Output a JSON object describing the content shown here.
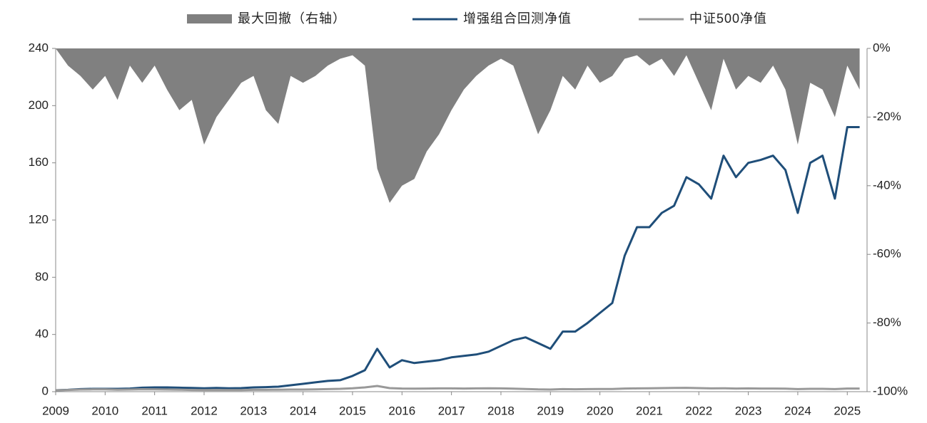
{
  "chart_data": {
    "type": "line",
    "x": [
      2009,
      2009.25,
      2009.5,
      2009.75,
      2010,
      2010.25,
      2010.5,
      2010.75,
      2011,
      2011.25,
      2011.5,
      2011.75,
      2012,
      2012.25,
      2012.5,
      2012.75,
      2013,
      2013.25,
      2013.5,
      2013.75,
      2014,
      2014.25,
      2014.5,
      2014.75,
      2015,
      2015.25,
      2015.5,
      2015.75,
      2016,
      2016.25,
      2016.5,
      2016.75,
      2017,
      2017.25,
      2017.5,
      2017.75,
      2018,
      2018.25,
      2018.5,
      2018.75,
      2019,
      2019.25,
      2019.5,
      2019.75,
      2020,
      2020.25,
      2020.5,
      2020.75,
      2021,
      2021.25,
      2021.5,
      2021.75,
      2022,
      2022.25,
      2022.5,
      2022.75,
      2023,
      2023.25,
      2023.5,
      2023.75,
      2024,
      2024.25,
      2024.5,
      2024.75,
      2025,
      2025.25
    ],
    "series": [
      {
        "name": "最大回撤（右轴）",
        "color": "#808080",
        "axis": "y2",
        "style": "area",
        "values": [
          0,
          -5,
          -8,
          -12,
          -8,
          -15,
          -5,
          -10,
          -5,
          -12,
          -18,
          -15,
          -28,
          -20,
          -15,
          -10,
          -8,
          -18,
          -22,
          -8,
          -10,
          -8,
          -5,
          -3,
          -2,
          -5,
          -35,
          -45,
          -40,
          -38,
          -30,
          -25,
          -18,
          -12,
          -8,
          -5,
          -3,
          -5,
          -15,
          -25,
          -18,
          -8,
          -12,
          -5,
          -10,
          -8,
          -3,
          -2,
          -5,
          -3,
          -8,
          -2,
          -10,
          -18,
          -3,
          -12,
          -8,
          -10,
          -5,
          -12,
          -28,
          -10,
          -12,
          -20,
          -5,
          -12
        ]
      },
      {
        "name": "增强组合回测净值",
        "color": "#1f4e79",
        "style": "line",
        "values": [
          1,
          1.3,
          1.8,
          2,
          2,
          2,
          2.2,
          2.8,
          3,
          3,
          2.8,
          2.6,
          2.4,
          2.6,
          2.4,
          2.5,
          3,
          3.2,
          3.5,
          4.5,
          5.5,
          6.5,
          7.5,
          8,
          11,
          15,
          30,
          17,
          22,
          20,
          21,
          22,
          24,
          25,
          26,
          28,
          32,
          36,
          38,
          34,
          30,
          42,
          42,
          48,
          55,
          62,
          95,
          115,
          115,
          125,
          130,
          150,
          145,
          135,
          165,
          150,
          160,
          162,
          165,
          155,
          125,
          160,
          165,
          135,
          185,
          185
        ]
      },
      {
        "name": "中证500净值",
        "color": "#999999",
        "style": "line",
        "values": [
          1,
          1.2,
          1.5,
          1.6,
          1.6,
          1.4,
          1.5,
          1.7,
          1.6,
          1.5,
          1.4,
          1.2,
          1.1,
          1.2,
          1.1,
          1.1,
          1.3,
          1.3,
          1.4,
          1.5,
          1.5,
          1.6,
          1.8,
          2,
          2.4,
          3,
          4,
          2.5,
          2.2,
          2.1,
          2.2,
          2.3,
          2.3,
          2.2,
          2.3,
          2.4,
          2.3,
          2.1,
          1.9,
          1.6,
          1.5,
          1.8,
          1.7,
          1.8,
          1.9,
          1.9,
          2.2,
          2.3,
          2.4,
          2.5,
          2.6,
          2.7,
          2.5,
          2.3,
          2.4,
          2.2,
          2.3,
          2.2,
          2.2,
          2.1,
          1.8,
          2,
          2,
          1.8,
          2.2,
          2.2
        ]
      }
    ],
    "xlim": [
      2009,
      2025.4
    ],
    "xticks": [
      2009,
      2010,
      2011,
      2012,
      2013,
      2014,
      2015,
      2016,
      2017,
      2018,
      2019,
      2020,
      2021,
      2022,
      2023,
      2024,
      2025
    ],
    "ylim": [
      0,
      240
    ],
    "yticks": [
      0,
      40,
      80,
      120,
      160,
      200,
      240
    ],
    "y2lim": [
      -100,
      0
    ],
    "y2ticks": [
      {
        "value": 0,
        "label": "0%"
      },
      {
        "value": -20,
        "label": "-20%"
      },
      {
        "value": -40,
        "label": "-40%"
      },
      {
        "value": -60,
        "label": "-60%"
      },
      {
        "value": -80,
        "label": "-80%"
      },
      {
        "value": -100,
        "label": "-100%"
      }
    ],
    "legend": "top"
  }
}
